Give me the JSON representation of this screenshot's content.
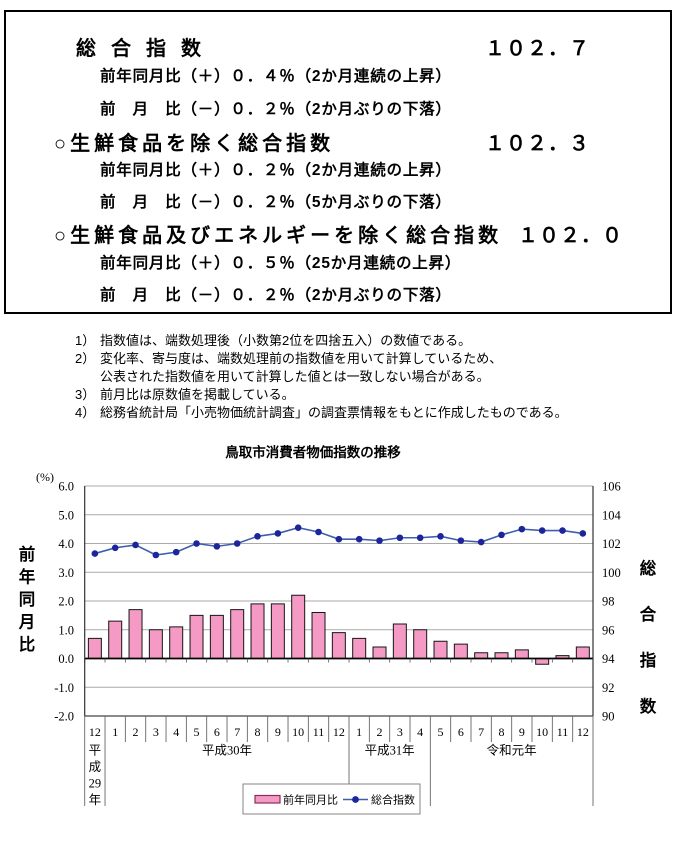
{
  "summary_box": {
    "sections": [
      {
        "heading": "総合指数",
        "value": "１０２．７",
        "yoy": "前年同月比（＋）０．４％（2か月連続の上昇）",
        "mom": "前　月　比（－）０．２％（2か月ぶりの下落）"
      },
      {
        "heading": "○生鮮食品を除く総合指数",
        "value": "１０２．３",
        "yoy": "前年同月比（＋）０．２％（2か月連続の上昇）",
        "mom": "前　月　比（－）０．２％（5か月ぶりの下落）"
      },
      {
        "heading": "○生鮮食品及びエネルギーを除く総合指数",
        "value": "１０２．０",
        "yoy": "前年同月比（＋）０．５％（25か月連続の上昇）",
        "mom": "前　月　比（－）０．２％（2か月ぶりの下落）"
      }
    ]
  },
  "notes": {
    "lines": [
      {
        "marker": "1）",
        "text": "指数値は、端数処理後（小数第2位を四捨五入）の数値である。"
      },
      {
        "marker": "2）",
        "text": "変化率、寄与度は、端数処理前の指数値を用いて計算しているため、"
      },
      {
        "marker": "",
        "text": "公表された指数値を用いて計算した値とは一致しない場合がある。"
      },
      {
        "marker": "3）",
        "text": "前月比は原数値を掲載している。"
      },
      {
        "marker": "4）",
        "text": "総務省統計局「小売物価統計調査」の調査票情報をもとに作成したものである。"
      }
    ]
  },
  "chart_data": {
    "type": "bar+line",
    "title": "鳥取市消費者物価指数の推移",
    "categories": [
      "12",
      "1",
      "2",
      "3",
      "4",
      "5",
      "6",
      "7",
      "8",
      "9",
      "10",
      "11",
      "12",
      "1",
      "2",
      "3",
      "4",
      "5",
      "6",
      "7",
      "8",
      "9",
      "10",
      "11",
      "12"
    ],
    "series": [
      {
        "name": "前年同月比",
        "type": "bar",
        "axis": "left",
        "values": [
          0.7,
          1.3,
          1.7,
          1.0,
          1.1,
          1.5,
          1.5,
          1.7,
          1.9,
          1.9,
          2.2,
          1.6,
          0.9,
          0.7,
          0.4,
          1.2,
          1.0,
          0.6,
          0.5,
          0.2,
          0.2,
          0.3,
          -0.2,
          0.1,
          0.4
        ]
      },
      {
        "name": "総合指数",
        "type": "line",
        "axis": "right",
        "values": [
          101.3,
          101.7,
          101.9,
          101.2,
          101.4,
          102.0,
          101.8,
          102.0,
          102.5,
          102.7,
          103.1,
          102.8,
          102.3,
          102.3,
          102.2,
          102.4,
          102.4,
          102.5,
          102.2,
          102.1,
          102.6,
          103.0,
          102.9,
          102.9,
          102.7
        ]
      }
    ],
    "era_groups": [
      {
        "label": "平成29年",
        "span": 1,
        "vertical": true
      },
      {
        "label": "平成30年",
        "span": 12,
        "vertical": false
      },
      {
        "label": "平成31年",
        "span": 4,
        "vertical": false
      },
      {
        "label": "令和元年",
        "span": 8,
        "vertical": false
      }
    ],
    "left_axis": {
      "unit_label": "(%)",
      "axis_label": "前年同月比",
      "tick_labels": [
        "6.0",
        "5.0",
        "4.0",
        "3.0",
        "2.0",
        "1.0",
        "0.0",
        "-1.0",
        "-2.0"
      ],
      "tick_values": [
        6,
        5,
        4,
        3,
        2,
        1,
        0,
        -1,
        -2
      ],
      "range": [
        -2,
        6
      ],
      "grid": true
    },
    "right_axis": {
      "axis_label": "総合指数",
      "tick_labels": [
        "106",
        "104",
        "102",
        "100",
        "98",
        "96",
        "94",
        "92",
        "90"
      ],
      "tick_values": [
        106,
        104,
        102,
        100,
        98,
        96,
        94,
        92,
        90
      ],
      "range": [
        90,
        106
      ]
    },
    "legend": {
      "position": "bottom",
      "entries": [
        "前年同月比",
        "総合指数"
      ]
    },
    "colors": {
      "bar_fill": "#F49AC4",
      "bar_border": "#161616",
      "bar_legend_border": "#8B2D5C",
      "line": "#3E5FAE",
      "marker": "#1C2599",
      "grid": "#AAAAAA",
      "zero_line": "#000000",
      "frame": "#444444",
      "separator": "#666666",
      "legend_border": "#848484"
    }
  }
}
